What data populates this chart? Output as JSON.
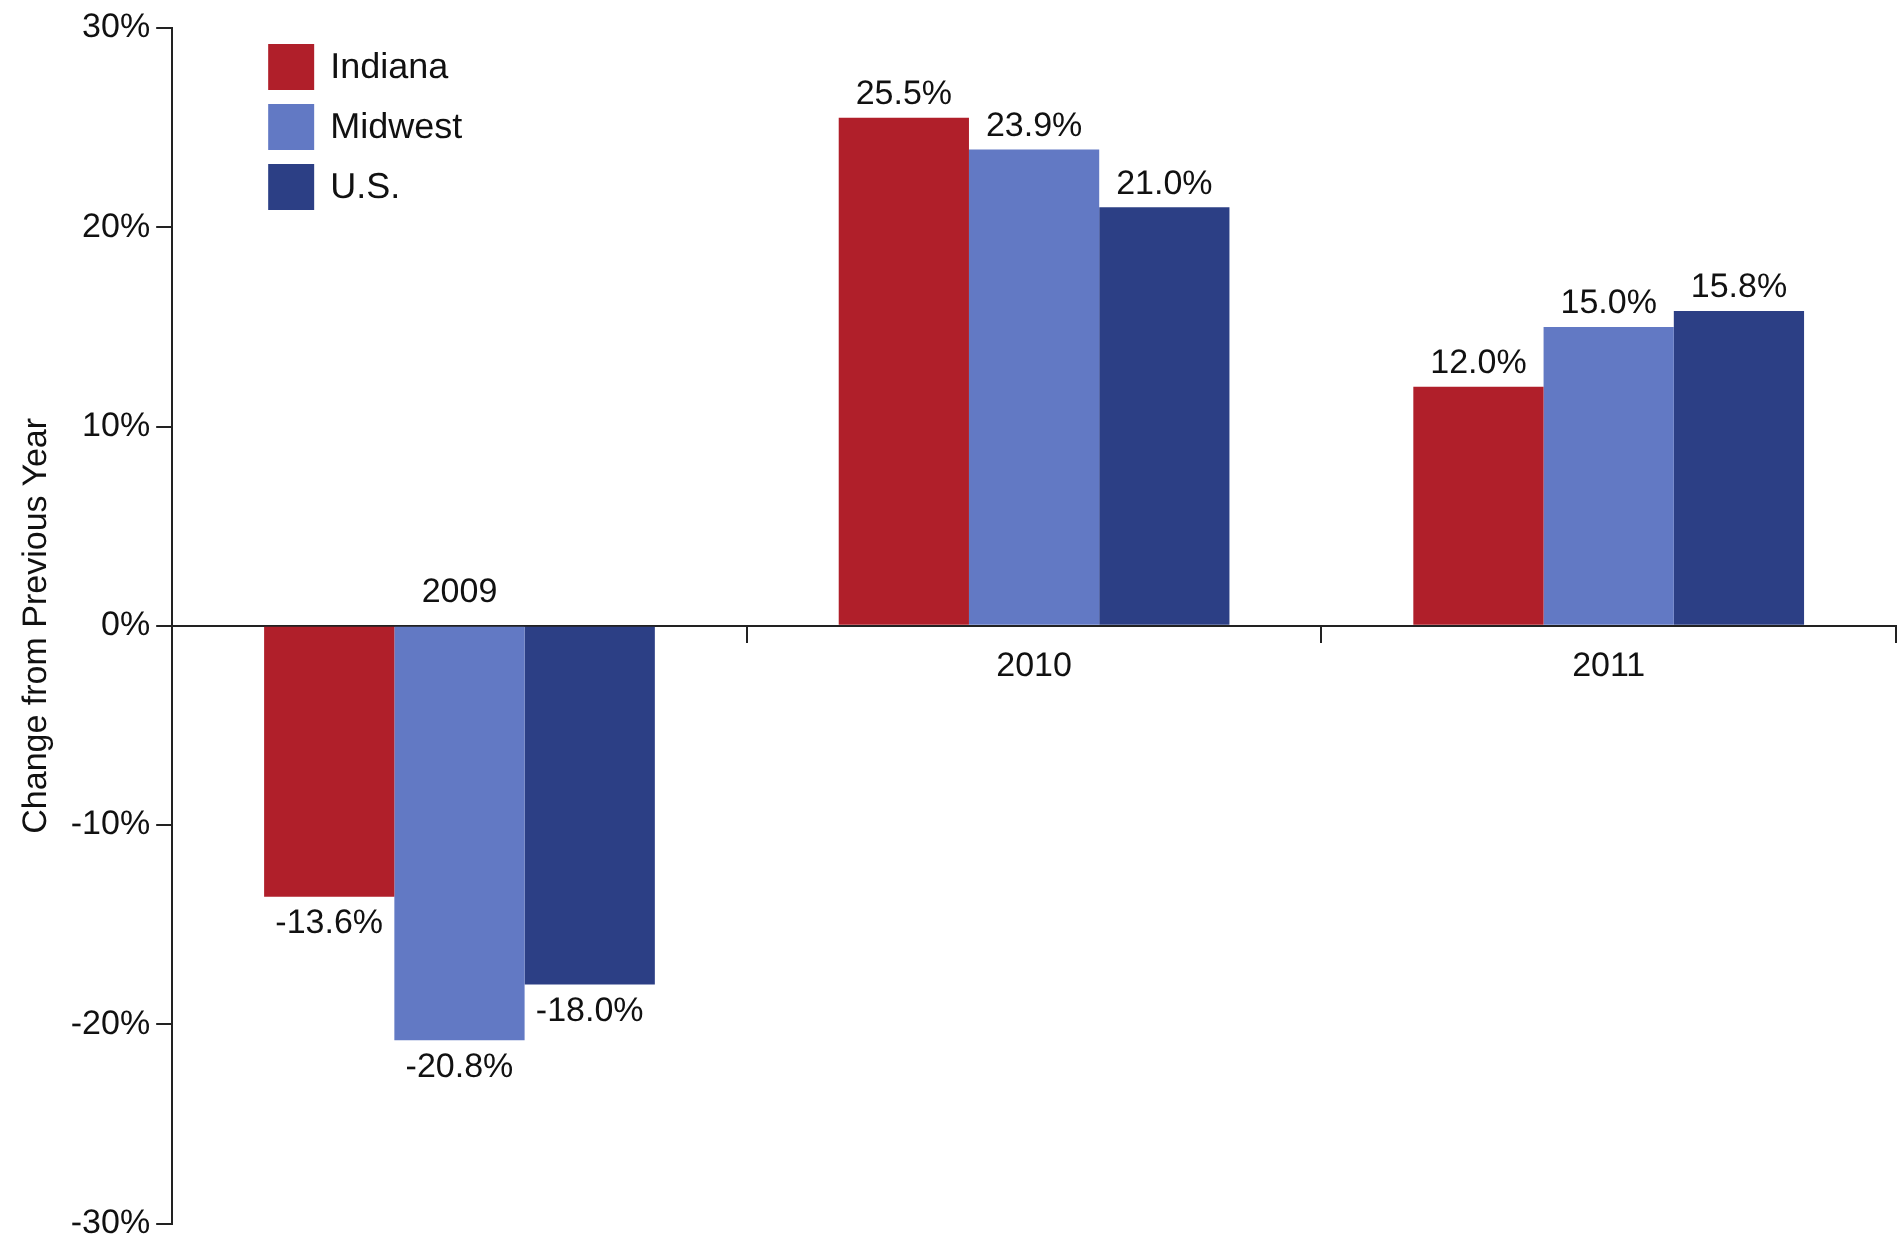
{
  "chart_data": {
    "type": "bar",
    "ylabel": "Change from Previous Year",
    "categories": [
      "2009",
      "2010",
      "2011"
    ],
    "series": [
      {
        "name": "Indiana",
        "color": "#b01f2a",
        "values": [
          -13.6,
          25.5,
          12.0
        ],
        "value_labels": [
          "-13.6%",
          "25.5%",
          "12.0%"
        ]
      },
      {
        "name": "Midwest",
        "color": "#6279c4",
        "values": [
          -20.8,
          23.9,
          15.0
        ],
        "value_labels": [
          "-20.8%",
          "23.9%",
          "15.0%"
        ]
      },
      {
        "name": "U.S.",
        "color": "#2c3f85",
        "values": [
          -18.0,
          21.0,
          15.8
        ],
        "value_labels": [
          "-18.0%",
          "21.0%",
          "15.8%"
        ]
      }
    ],
    "ylim": [
      -30,
      30
    ],
    "yticks": [
      {
        "value": -30,
        "label": "-30%"
      },
      {
        "value": -20,
        "label": "-20%"
      },
      {
        "value": -10,
        "label": "-10%"
      },
      {
        "value": 0,
        "label": "0%"
      },
      {
        "value": 10,
        "label": "10%"
      },
      {
        "value": 20,
        "label": "20%"
      },
      {
        "value": 30,
        "label": "30%"
      }
    ],
    "grid": false,
    "legend": "top left"
  }
}
